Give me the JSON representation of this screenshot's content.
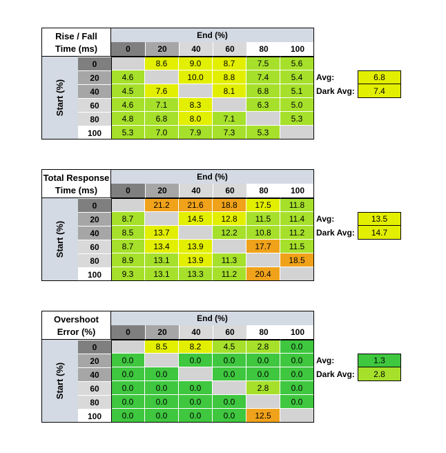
{
  "colors": {
    "green": "#3fc73f",
    "lightgreen": "#a6e02b",
    "yellow": "#e3ef00",
    "orange": "#f0a21a",
    "diag": "#d3d3d3",
    "headerBlue": "#d4dae3",
    "headerDark": "#7f7f7f",
    "headerMid": "#a6a6a6",
    "headerLight": "#d9d9d9"
  },
  "chart_data": [
    {
      "type": "table",
      "title_line1": "Rise / Fall",
      "title_line2": "Time (ms)",
      "col_header": "End (%)",
      "row_header": "Start (%)",
      "levels": [
        "0",
        "20",
        "40",
        "60",
        "80",
        "100"
      ],
      "values": [
        [
          "",
          "8.6",
          "9.0",
          "8.7",
          "7.5",
          "5.6"
        ],
        [
          "4.6",
          "",
          "10.0",
          "8.8",
          "7.4",
          "5.4"
        ],
        [
          "4.5",
          "7.6",
          "",
          "8.1",
          "6.8",
          "5.1"
        ],
        [
          "4.6",
          "7.1",
          "8.3",
          "",
          "6.3",
          "5.0"
        ],
        [
          "4.8",
          "6.8",
          "8.0",
          "7.1",
          "",
          "5.3"
        ],
        [
          "5.3",
          "7.0",
          "7.9",
          "7.3",
          "5.3",
          ""
        ]
      ],
      "cell_colors": [
        [
          "diag",
          "yellow",
          "yellow",
          "yellow",
          "lightgreen",
          "lightgreen"
        ],
        [
          "lightgreen",
          "diag",
          "yellow",
          "yellow",
          "lightgreen",
          "lightgreen"
        ],
        [
          "lightgreen",
          "yellow",
          "diag",
          "yellow",
          "lightgreen",
          "lightgreen"
        ],
        [
          "lightgreen",
          "lightgreen",
          "yellow",
          "diag",
          "lightgreen",
          "lightgreen"
        ],
        [
          "lightgreen",
          "lightgreen",
          "yellow",
          "lightgreen",
          "diag",
          "lightgreen"
        ],
        [
          "lightgreen",
          "lightgreen",
          "lightgreen",
          "lightgreen",
          "lightgreen",
          "diag"
        ]
      ],
      "avg_label": "Avg:",
      "avg_value": "6.8",
      "avg_color": "yellow",
      "dark_avg_label": "Dark Avg:",
      "dark_avg_value": "7.4",
      "dark_avg_color": "yellow"
    },
    {
      "type": "table",
      "title_line1": "Total Response",
      "title_line2": "Time (ms)",
      "col_header": "End (%)",
      "row_header": "Start (%)",
      "levels": [
        "0",
        "20",
        "40",
        "60",
        "80",
        "100"
      ],
      "values": [
        [
          "",
          "21.2",
          "21.6",
          "18.8",
          "17.5",
          "11.8"
        ],
        [
          "8.7",
          "",
          "14.5",
          "12.8",
          "11.5",
          "11.4"
        ],
        [
          "8.5",
          "13.7",
          "",
          "12.2",
          "10.8",
          "11.2"
        ],
        [
          "8.7",
          "13.4",
          "13.9",
          "",
          "17.7",
          "11.5"
        ],
        [
          "8.9",
          "13.1",
          "13.9",
          "11.3",
          "",
          "18.5"
        ],
        [
          "9.3",
          "13.1",
          "13.3",
          "11.2",
          "20.4",
          ""
        ]
      ],
      "cell_colors": [
        [
          "diag",
          "orange",
          "orange",
          "orange",
          "yellow",
          "lightgreen"
        ],
        [
          "lightgreen",
          "diag",
          "yellow",
          "yellow",
          "lightgreen",
          "lightgreen"
        ],
        [
          "lightgreen",
          "yellow",
          "diag",
          "lightgreen",
          "lightgreen",
          "lightgreen"
        ],
        [
          "lightgreen",
          "yellow",
          "yellow",
          "diag",
          "orange",
          "lightgreen"
        ],
        [
          "lightgreen",
          "lightgreen",
          "yellow",
          "lightgreen",
          "diag",
          "orange"
        ],
        [
          "lightgreen",
          "lightgreen",
          "lightgreen",
          "lightgreen",
          "orange",
          "diag"
        ]
      ],
      "avg_label": "Avg:",
      "avg_value": "13.5",
      "avg_color": "yellow",
      "dark_avg_label": "Dark Avg:",
      "dark_avg_value": "14.7",
      "dark_avg_color": "yellow"
    },
    {
      "type": "table",
      "title_line1": "Overshoot",
      "title_line2": "Error (%)",
      "col_header": "End (%)",
      "row_header": "Start (%)",
      "levels": [
        "0",
        "20",
        "40",
        "60",
        "80",
        "100"
      ],
      "values": [
        [
          "",
          "8.5",
          "8.2",
          "4.5",
          "2.8",
          "0.0"
        ],
        [
          "0.0",
          "",
          "0.0",
          "0.0",
          "0.0",
          "0.0"
        ],
        [
          "0.0",
          "0.0",
          "",
          "0.0",
          "0.0",
          "0.0"
        ],
        [
          "0.0",
          "0.0",
          "0.0",
          "",
          "2.8",
          "0.0"
        ],
        [
          "0.0",
          "0.0",
          "0.0",
          "0.0",
          "",
          "0.0"
        ],
        [
          "0.0",
          "0.0",
          "0.0",
          "0.0",
          "12.5",
          ""
        ]
      ],
      "cell_colors": [
        [
          "diag",
          "yellow",
          "yellow",
          "lightgreen",
          "lightgreen",
          "green"
        ],
        [
          "green",
          "diag",
          "green",
          "green",
          "green",
          "green"
        ],
        [
          "green",
          "green",
          "diag",
          "green",
          "green",
          "green"
        ],
        [
          "green",
          "green",
          "green",
          "diag",
          "lightgreen",
          "green"
        ],
        [
          "green",
          "green",
          "green",
          "green",
          "diag",
          "green"
        ],
        [
          "green",
          "green",
          "green",
          "green",
          "orange",
          "diag"
        ]
      ],
      "avg_label": "Avg:",
      "avg_value": "1.3",
      "avg_color": "green",
      "dark_avg_label": "Dark Avg:",
      "dark_avg_value": "2.8",
      "dark_avg_color": "lightgreen"
    }
  ]
}
